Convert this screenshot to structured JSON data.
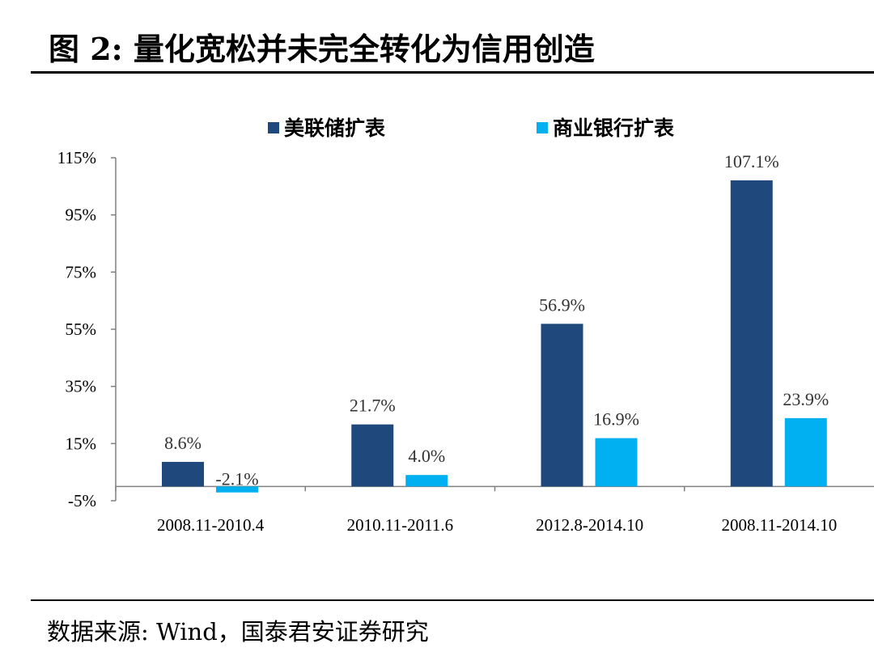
{
  "figure": {
    "title": "图 2:  量化宽松并未完全转化为信用创造",
    "source": "数据来源:  Wind，国泰君安证券研究"
  },
  "chart_data": {
    "type": "bar",
    "categories": [
      "2008.11-2010.4",
      "2010.11-2011.6",
      "2012.8-2014.10",
      "2008.11-2014.10"
    ],
    "series": [
      {
        "name": "美联储扩表",
        "values": [
          8.6,
          21.7,
          56.9,
          107.1
        ],
        "labels": [
          "8.6%",
          "21.7%",
          "56.9%",
          "107.1%"
        ],
        "color": "#1f497d"
      },
      {
        "name": "商业银行扩表",
        "values": [
          -2.1,
          4.0,
          16.9,
          23.9
        ],
        "labels": [
          "-2.1%",
          "4.0%",
          "16.9%",
          "23.9%"
        ],
        "color": "#00b0f0"
      }
    ],
    "y_ticks": [
      "115%",
      "95%",
      "75%",
      "55%",
      "35%",
      "15%",
      "-5%"
    ],
    "y_tick_values": [
      115,
      95,
      75,
      55,
      35,
      15,
      -5
    ],
    "ylim": [
      -5,
      115
    ],
    "unit": "%",
    "legend_position": "top-center",
    "grid": false
  }
}
